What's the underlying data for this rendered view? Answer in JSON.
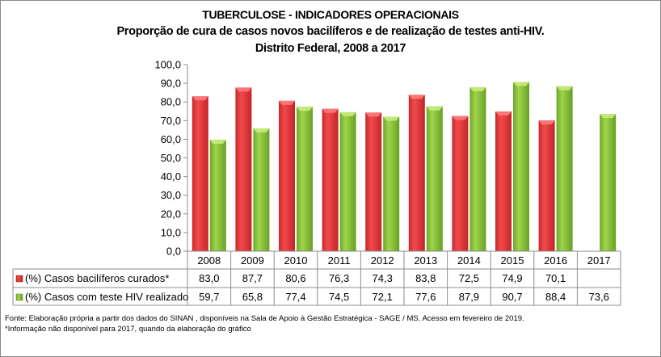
{
  "titles": {
    "line1": "TUBERCULOSE - INDICADORES OPERACIONAIS",
    "line2": "Proporção de cura de casos novos bacilíferos e de realização de testes anti-HIV.",
    "line3": "Distrito Federal, 2008 a 2017"
  },
  "chart_data": {
    "type": "bar",
    "title": "TUBERCULOSE - INDICADORES OPERACIONAIS",
    "subtitle": "Proporção de cura de casos novos bacilíferos e de realização de testes anti-HIV. Distrito Federal, 2008 a 2017",
    "xlabel": "",
    "ylabel": "",
    "ylim": [
      0,
      100
    ],
    "yticks": [
      "0,0",
      "10,0",
      "20,0",
      "30,0",
      "40,0",
      "50,0",
      "60,0",
      "70,0",
      "80,0",
      "90,0",
      "100,0"
    ],
    "categories": [
      "2008",
      "2009",
      "2010",
      "2011",
      "2012",
      "2013",
      "2014",
      "2015",
      "2016",
      "2017"
    ],
    "series": [
      {
        "name": "(%) Casos bacilíferos curados*",
        "color": "#e8393b",
        "values": [
          83.0,
          87.7,
          80.6,
          76.3,
          74.3,
          83.8,
          72.5,
          74.9,
          70.1,
          null
        ],
        "labels": [
          "83,0",
          "87,7",
          "80,6",
          "76,3",
          "74,3",
          "83,8",
          "72,5",
          "74,9",
          "70,1",
          ""
        ]
      },
      {
        "name": "(%) Casos com teste HIV realizado",
        "color": "#8cc63f",
        "values": [
          59.7,
          65.8,
          77.4,
          74.5,
          72.1,
          77.6,
          87.9,
          90.7,
          88.4,
          73.6
        ],
        "labels": [
          "59,7",
          "65,8",
          "77,4",
          "74,5",
          "72,1",
          "77,6",
          "87,9",
          "90,7",
          "88,4",
          "73,6"
        ]
      }
    ],
    "grid": false,
    "legend": "data-table"
  },
  "footer": {
    "source": "Fonte: Elaboração própria a partir dos dados do SINAN , disponíveis na Sala de  Apoio  à Gestão Estratégica - SAGE / MS. Acesso em fevereiro de 2019.",
    "note": "*Informação não  disponível  para 2017,  quando da elaboração do gráfico"
  }
}
